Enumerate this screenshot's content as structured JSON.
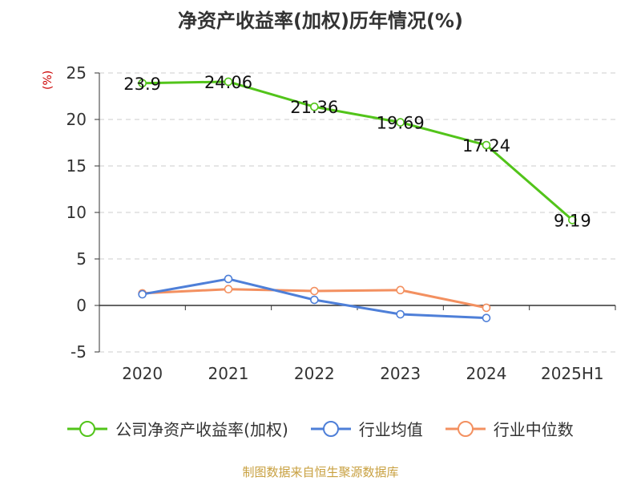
{
  "chart_data": {
    "type": "line",
    "title": "净资产收益率(加权)历年情况(%)",
    "ylabel": "(%)",
    "categories": [
      "2020",
      "2021",
      "2022",
      "2023",
      "2024",
      "2025H1"
    ],
    "ylim": [
      -5,
      25
    ],
    "yticks": [
      25,
      20,
      15,
      10,
      5,
      0,
      -5
    ],
    "grid": true,
    "legend_position": "bottom",
    "series": [
      {
        "name": "公司净资产收益率(加权)",
        "color": "#52c41a",
        "values": [
          23.9,
          24.06,
          21.36,
          19.69,
          17.24,
          9.19
        ],
        "labels": [
          "23.9",
          "24.06",
          "21.36",
          "19.69",
          "17.24",
          "9.19"
        ]
      },
      {
        "name": "行业均值",
        "color": "#4e7fd8",
        "values": [
          1.2,
          2.85,
          0.6,
          -0.95,
          -1.35,
          null
        ]
      },
      {
        "name": "行业中位数",
        "color": "#f39060",
        "values": [
          1.3,
          1.75,
          1.55,
          1.65,
          -0.25,
          null
        ]
      }
    ]
  },
  "source": "制图数据来自恒生聚源数据库"
}
